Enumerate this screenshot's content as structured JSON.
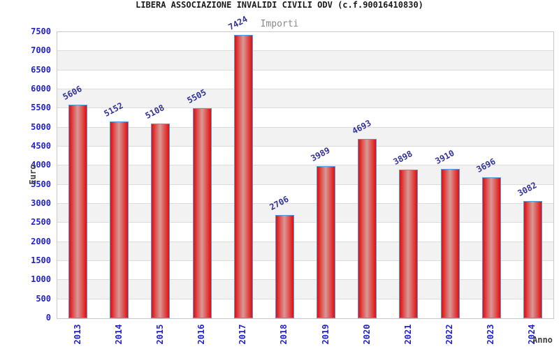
{
  "chart_data": {
    "type": "bar",
    "title": "LIBERA ASSOCIAZIONE INVALIDI CIVILI ODV (c.f.90016410830)",
    "legend": "Importi",
    "categories": [
      "2013",
      "2014",
      "2015",
      "2016",
      "2017",
      "2018",
      "2019",
      "2020",
      "2021",
      "2022",
      "2023",
      "2024"
    ],
    "values": [
      5606,
      5152,
      5108,
      5505,
      7424,
      2706,
      3989,
      4693,
      3898,
      3910,
      3696,
      3082
    ],
    "xlabel": "Anno",
    "ylabel": "Euro",
    "ylim": [
      0,
      7500
    ],
    "ytick_step": 500,
    "grid": true,
    "legend_position": "top-center",
    "colors": {
      "title_text": "#1a1a1a",
      "legend_text": "#888888",
      "axis_title_text": "#404040",
      "tick_text": "#2222cc",
      "value_label_text": "#333399",
      "bar_edge": "#e20d0d",
      "bar_center": "#d89a96",
      "bar_border": "#4f9ddd",
      "band_fill": "#f2f2f2",
      "gridline": "#dcdcdc",
      "plot_frame": "#c9c9c9",
      "plot_background": "#ffffff"
    }
  }
}
